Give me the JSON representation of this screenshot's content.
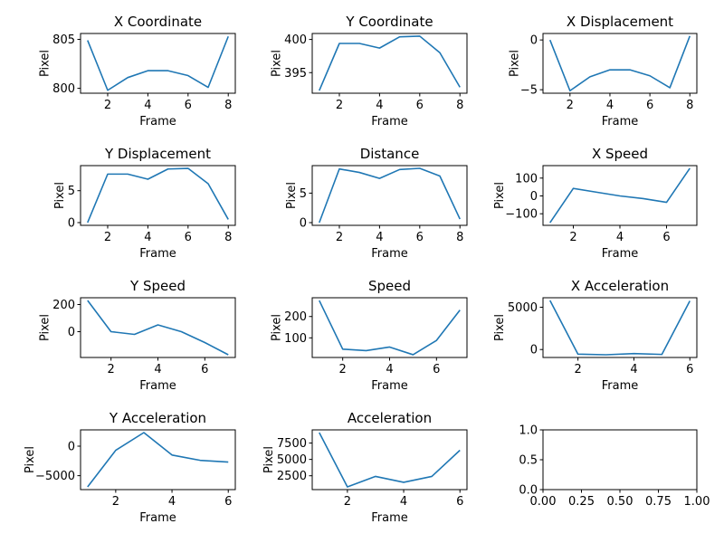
{
  "series_color": "#1f77b4",
  "chart_data": [
    {
      "type": "line",
      "title": "X Coordinate",
      "xlabel": "Frame",
      "ylabel": "Pixel",
      "x": [
        1,
        2,
        3,
        4,
        5,
        6,
        7,
        8
      ],
      "y": [
        804.9,
        799.8,
        801.1,
        801.8,
        801.8,
        801.3,
        800.1,
        805.3
      ],
      "xlim": [
        0.65,
        8.35
      ],
      "ylim": [
        799.5,
        805.6
      ],
      "xticks": [
        2,
        4,
        6,
        8
      ],
      "yticks": [
        800,
        805
      ]
    },
    {
      "type": "line",
      "title": "Y Coordinate",
      "xlabel": "Frame",
      "ylabel": "Pixel",
      "x": [
        1,
        2,
        3,
        4,
        5,
        6,
        7,
        8
      ],
      "y": [
        392.3,
        399.4,
        399.4,
        398.7,
        400.4,
        400.5,
        398.0,
        392.8
      ],
      "xlim": [
        0.65,
        8.35
      ],
      "ylim": [
        391.9,
        400.9
      ],
      "xticks": [
        2,
        4,
        6,
        8
      ],
      "yticks": [
        395,
        400
      ]
    },
    {
      "type": "line",
      "title": "X Displacement",
      "xlabel": "Frame",
      "ylabel": "Pixel",
      "x": [
        1,
        2,
        3,
        4,
        5,
        6,
        7,
        8
      ],
      "y": [
        0,
        -5.1,
        -3.7,
        -3.0,
        -3.0,
        -3.6,
        -4.8,
        0.4
      ],
      "xlim": [
        0.65,
        8.35
      ],
      "ylim": [
        -5.35,
        0.65
      ],
      "xticks": [
        2,
        4,
        6,
        8
      ],
      "yticks": [
        -5,
        0
      ]
    },
    {
      "type": "line",
      "title": "Y Displacement",
      "xlabel": "Frame",
      "ylabel": "Pixel",
      "x": [
        1,
        2,
        3,
        4,
        5,
        6,
        7,
        8
      ],
      "y": [
        0,
        7.6,
        7.6,
        6.8,
        8.4,
        8.5,
        6.1,
        0.5
      ],
      "xlim": [
        0.65,
        8.35
      ],
      "ylim": [
        -0.43,
        8.93
      ],
      "xticks": [
        2,
        4,
        6,
        8
      ],
      "yticks": [
        0,
        5
      ]
    },
    {
      "type": "line",
      "title": "Distance",
      "xlabel": "Frame",
      "ylabel": "Pixel",
      "x": [
        1,
        2,
        3,
        4,
        5,
        6,
        7,
        8
      ],
      "y": [
        0,
        9.1,
        8.5,
        7.5,
        9.0,
        9.2,
        7.9,
        0.6
      ],
      "xlim": [
        0.65,
        8.35
      ],
      "ylim": [
        -0.46,
        9.66
      ],
      "xticks": [
        2,
        4,
        6,
        8
      ],
      "yticks": [
        0,
        5
      ]
    },
    {
      "type": "line",
      "title": "X Speed",
      "xlabel": "Frame",
      "ylabel": "Pixel",
      "x": [
        1,
        2,
        3,
        4,
        5,
        6,
        7
      ],
      "y": [
        -150,
        42,
        21,
        0,
        -15,
        -36,
        155
      ],
      "xlim": [
        0.7,
        7.3
      ],
      "ylim": [
        -165,
        170
      ],
      "xticks": [
        2,
        4,
        6
      ],
      "yticks": [
        -100,
        0,
        100
      ]
    },
    {
      "type": "line",
      "title": "Y Speed",
      "xlabel": "Frame",
      "ylabel": "Pixel",
      "x": [
        1,
        2,
        3,
        4,
        5,
        6,
        7
      ],
      "y": [
        230,
        0,
        -20,
        50,
        0,
        -80,
        -170
      ],
      "xlim": [
        0.7,
        7.3
      ],
      "ylim": [
        -190,
        250
      ],
      "xticks": [
        2,
        4,
        6
      ],
      "yticks": [
        0,
        200
      ]
    },
    {
      "type": "line",
      "title": "Speed",
      "xlabel": "Frame",
      "ylabel": "Pixel",
      "x": [
        1,
        2,
        3,
        4,
        5,
        6,
        7
      ],
      "y": [
        275,
        47,
        40,
        57,
        21,
        88,
        230
      ],
      "xlim": [
        0.7,
        7.3
      ],
      "ylim": [
        8,
        288
      ],
      "xticks": [
        2,
        4,
        6
      ],
      "yticks": [
        100,
        200
      ]
    },
    {
      "type": "line",
      "title": "X Acceleration",
      "xlabel": "Frame",
      "ylabel": "Pixel",
      "x": [
        1,
        2,
        3,
        4,
        5,
        6
      ],
      "y": [
        5800,
        -550,
        -620,
        -480,
        -580,
        5750
      ],
      "xlim": [
        0.75,
        6.25
      ],
      "ylim": [
        -940,
        6120
      ],
      "xticks": [
        2,
        4,
        6
      ],
      "yticks": [
        0,
        5000
      ]
    },
    {
      "type": "line",
      "title": "Y Acceleration",
      "xlabel": "Frame",
      "ylabel": "Pixel",
      "x": [
        1,
        2,
        3,
        4,
        5,
        6
      ],
      "y": [
        -6900,
        -700,
        2300,
        -1500,
        -2400,
        -2700
      ],
      "xlim": [
        0.75,
        6.25
      ],
      "ylim": [
        -7360,
        2760
      ],
      "xticks": [
        2,
        4,
        6
      ],
      "yticks": [
        -5000,
        0
      ]
    },
    {
      "type": "line",
      "title": "Acceleration",
      "xlabel": "Frame",
      "ylabel": "Pixel",
      "x": [
        1,
        2,
        3,
        4,
        5,
        6
      ],
      "y": [
        9100,
        800,
        2400,
        1500,
        2400,
        6400
      ],
      "xlim": [
        0.75,
        6.25
      ],
      "ylim": [
        385,
        9515
      ],
      "xticks": [
        2,
        4,
        6
      ],
      "yticks": [
        2500,
        5000,
        7500
      ]
    },
    {
      "type": "line",
      "title": "",
      "xlabel": "",
      "ylabel": "",
      "x": [],
      "y": [],
      "xlim": [
        0,
        1
      ],
      "ylim": [
        0,
        1
      ],
      "xticks": [
        0,
        0.25,
        0.5,
        0.75,
        1
      ],
      "yticks": [
        0,
        0.5,
        1
      ],
      "xtick_labels": [
        "0.00",
        "0.25",
        "0.50",
        "0.75",
        "1.00"
      ],
      "ytick_labels": [
        "0.0",
        "0.5",
        "1.0"
      ]
    }
  ]
}
